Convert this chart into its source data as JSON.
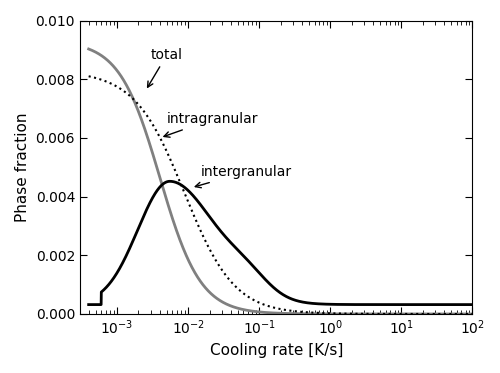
{
  "xlim": [
    0.0003,
    100.0
  ],
  "ylim": [
    0,
    0.01
  ],
  "xlabel": "Cooling rate [K/s]",
  "ylabel": "Phase fraction",
  "yticks": [
    0.0,
    0.002,
    0.004,
    0.006,
    0.008,
    0.01
  ],
  "bg_color": "#ffffff",
  "line_color_total": "#000000",
  "line_color_intra": "#808080",
  "line_color_inter": "#000000",
  "annotation_total": "total",
  "annotation_intra": "intragranular",
  "annotation_inter": "intergranular"
}
